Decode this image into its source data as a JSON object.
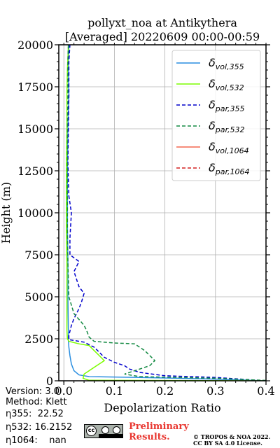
{
  "chart_data": {
    "type": "line",
    "title": "pollyxt_noa at Antikythera",
    "subtitle": "[Averaged] 20220609 00:00-00:59",
    "xlabel": "Depolarization Ratio",
    "ylabel": "Height (m)",
    "xlim": [
      -0.01,
      0.4
    ],
    "ylim": [
      0,
      20000
    ],
    "x_ticks": [
      "0.0",
      "0.1",
      "0.2",
      "0.3",
      "0.4"
    ],
    "y_ticks": [
      "0",
      "2500",
      "5000",
      "7500",
      "10000",
      "12500",
      "15000",
      "17500",
      "20000"
    ],
    "grid": true,
    "legend_position": "top-right",
    "series": [
      {
        "name": "δvol,355",
        "name_main": "δ",
        "name_sub": "vol,355",
        "color": "#2a8ee0",
        "style": "solid",
        "points": [
          [
            0.4,
            0
          ],
          [
            0.3,
            100
          ],
          [
            0.15,
            200
          ],
          [
            0.05,
            250
          ],
          [
            0.03,
            350
          ],
          [
            0.02,
            600
          ],
          [
            0.015,
            1000
          ],
          [
            0.012,
            1500
          ],
          [
            0.01,
            2000
          ],
          [
            0.009,
            2400
          ],
          [
            0.009,
            3000
          ],
          [
            0.008,
            5000
          ],
          [
            0.008,
            7000
          ],
          [
            0.007,
            9000
          ],
          [
            0.007,
            12000
          ],
          [
            0.008,
            15000
          ],
          [
            0.01,
            17000
          ],
          [
            0.009,
            19000
          ],
          [
            0.01,
            20000
          ]
        ]
      },
      {
        "name": "δvol,532",
        "name_main": "δ",
        "name_sub": "vol,532",
        "color": "#7cfc00",
        "style": "solid",
        "points": [
          [
            0.4,
            0
          ],
          [
            0.05,
            30
          ],
          [
            0.038,
            150
          ],
          [
            0.04,
            400
          ],
          [
            0.05,
            600
          ],
          [
            0.065,
            900
          ],
          [
            0.08,
            1200
          ],
          [
            0.07,
            1500
          ],
          [
            0.06,
            1800
          ],
          [
            0.05,
            2100
          ],
          [
            0.03,
            2200
          ],
          [
            0.01,
            2350
          ],
          [
            0.007,
            2500
          ],
          [
            0.006,
            3000
          ],
          [
            0.006,
            5000
          ],
          [
            0.006,
            7000
          ],
          [
            0.005,
            9000
          ],
          [
            0.005,
            11000
          ],
          [
            0.005,
            13000
          ],
          [
            0.006,
            15000
          ],
          [
            0.006,
            17000
          ],
          [
            0.007,
            18500
          ],
          [
            0.008,
            19200
          ],
          [
            0.009,
            20000
          ]
        ]
      },
      {
        "name": "δpar,355",
        "name_main": "δ",
        "name_sub": "par,355",
        "color": "#0000cc",
        "style": "dashed",
        "points": [
          [
            0.4,
            0
          ],
          [
            0.3,
            200
          ],
          [
            0.2,
            300
          ],
          [
            0.15,
            500
          ],
          [
            0.13,
            700
          ],
          [
            0.12,
            900
          ],
          [
            0.1,
            1100
          ],
          [
            0.08,
            1400
          ],
          [
            0.07,
            1700
          ],
          [
            0.06,
            2000
          ],
          [
            0.04,
            2300
          ],
          [
            0.01,
            2450
          ],
          [
            0.01,
            2700
          ],
          [
            0.015,
            3300
          ],
          [
            0.02,
            3700
          ],
          [
            0.03,
            4300
          ],
          [
            0.035,
            4700
          ],
          [
            0.04,
            5200
          ],
          [
            0.03,
            5600
          ],
          [
            0.02,
            6500
          ],
          [
            0.03,
            7100
          ],
          [
            0.012,
            7500
          ],
          [
            0.012,
            8500
          ],
          [
            0.015,
            10000
          ],
          [
            0.01,
            11000
          ],
          [
            0.008,
            13000
          ],
          [
            0.009,
            15000
          ],
          [
            0.01,
            17000
          ],
          [
            0.01,
            19000
          ],
          [
            0.012,
            20000
          ]
        ]
      },
      {
        "name": "δpar,532",
        "name_main": "δ",
        "name_sub": "par,532",
        "color": "#148a43",
        "style": "dashed",
        "points": [
          [
            0.4,
            20
          ],
          [
            0.3,
            150
          ],
          [
            0.15,
            250
          ],
          [
            0.12,
            400
          ],
          [
            0.14,
            600
          ],
          [
            0.17,
            900
          ],
          [
            0.18,
            1200
          ],
          [
            0.17,
            1500
          ],
          [
            0.16,
            1800
          ],
          [
            0.15,
            2000
          ],
          [
            0.14,
            2200
          ],
          [
            0.1,
            2250
          ],
          [
            0.06,
            2350
          ],
          [
            0.05,
            2600
          ],
          [
            0.045,
            3000
          ],
          [
            0.04,
            3300
          ],
          [
            0.02,
            4000
          ],
          [
            0.01,
            5000
          ],
          [
            0.008,
            7000
          ],
          [
            0.007,
            9000
          ],
          [
            0.007,
            12000
          ],
          [
            0.007,
            15000
          ],
          [
            0.008,
            17000
          ],
          [
            0.008,
            19000
          ],
          [
            0.009,
            20000
          ]
        ]
      },
      {
        "name": "δvol,1064",
        "name_main": "δ",
        "name_sub": "vol,1064",
        "color": "#f4664f",
        "style": "solid",
        "points": []
      },
      {
        "name": "δpar,1064",
        "name_main": "δ",
        "name_sub": "par,1064",
        "color": "#d42020",
        "style": "dashed",
        "points": []
      }
    ]
  },
  "info": {
    "version": "Version: 3.0",
    "method": "Method: Klett",
    "eta355": "η355:  22.52",
    "eta532": "η532: 16.2152",
    "eta1064": "η1064:    nan"
  },
  "badge": {
    "cc": "cc"
  },
  "preliminary": [
    "Preliminary",
    "Results."
  ],
  "license": [
    "© TROPOS & NOA 2022.",
    "CC BY SA 4.0 License."
  ]
}
